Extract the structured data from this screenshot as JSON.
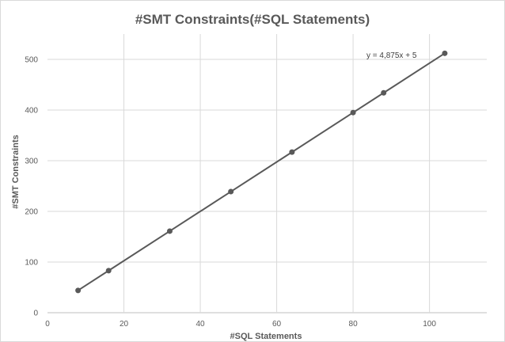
{
  "chart_data": {
    "type": "scatter",
    "title": "#SMT Constraints(#SQL Statements)",
    "xlabel": "#SQL Statements",
    "ylabel": "#SMT Constraints",
    "xlim": [
      0,
      115
    ],
    "ylim": [
      0,
      550
    ],
    "x_ticks": [
      0,
      20,
      40,
      60,
      80,
      100
    ],
    "y_ticks": [
      0,
      100,
      200,
      300,
      400,
      500
    ],
    "grid": true,
    "series": [
      {
        "x": [
          8,
          16,
          32,
          48,
          64,
          80,
          88,
          104
        ],
        "y": [
          44,
          83,
          161,
          239,
          317,
          395,
          434,
          512
        ],
        "color": "#595959",
        "connected": true
      }
    ],
    "trendline_label": "y = 4,875x + 5"
  }
}
